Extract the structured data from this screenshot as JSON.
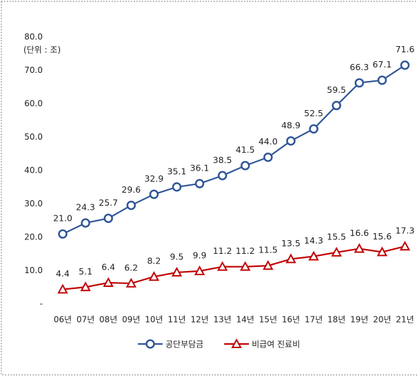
{
  "chart_data": {
    "type": "line",
    "annotation": "(단위 : 조)",
    "categories": [
      "06년",
      "07년",
      "08년",
      "09년",
      "10년",
      "11년",
      "12년",
      "13년",
      "14년",
      "15년",
      "16년",
      "17년",
      "18년",
      "19년",
      "20년",
      "21년"
    ],
    "series": [
      {
        "name": "공단부담금",
        "color": "#2f5597",
        "marker": "circle",
        "values": [
          21.0,
          24.3,
          25.7,
          29.6,
          32.9,
          35.1,
          36.1,
          38.5,
          41.5,
          44.0,
          48.9,
          52.5,
          59.5,
          66.3,
          67.1,
          71.6
        ],
        "value_labels": [
          "21.0",
          "24.3",
          "25.7",
          "29.6",
          "32.9",
          "35.1",
          "36.1",
          "38.5",
          "41.5",
          "44.0",
          "48.9",
          "52.5",
          "59.5",
          "66.3",
          "67.1",
          "71.6"
        ]
      },
      {
        "name": "비급여 진료비",
        "color": "#c00000",
        "marker": "triangle",
        "values": [
          4.4,
          5.1,
          6.4,
          6.2,
          8.2,
          9.5,
          9.9,
          11.2,
          11.2,
          11.5,
          13.5,
          14.3,
          15.5,
          16.6,
          15.6,
          17.3
        ]
      }
    ],
    "ylim": [
      0,
      80
    ],
    "yticks": [
      {
        "value": 0,
        "label": "-"
      },
      {
        "value": 10,
        "label": "10.0"
      },
      {
        "value": 20,
        "label": "20.0"
      },
      {
        "value": 30,
        "label": "30.0"
      },
      {
        "value": 40,
        "label": "40.0"
      },
      {
        "value": 50,
        "label": "50.0"
      },
      {
        "value": 60,
        "label": "60.0"
      },
      {
        "value": 70,
        "label": "70.0"
      },
      {
        "value": 80,
        "label": "80.0"
      }
    ],
    "grid": false,
    "legend": "bottom"
  }
}
